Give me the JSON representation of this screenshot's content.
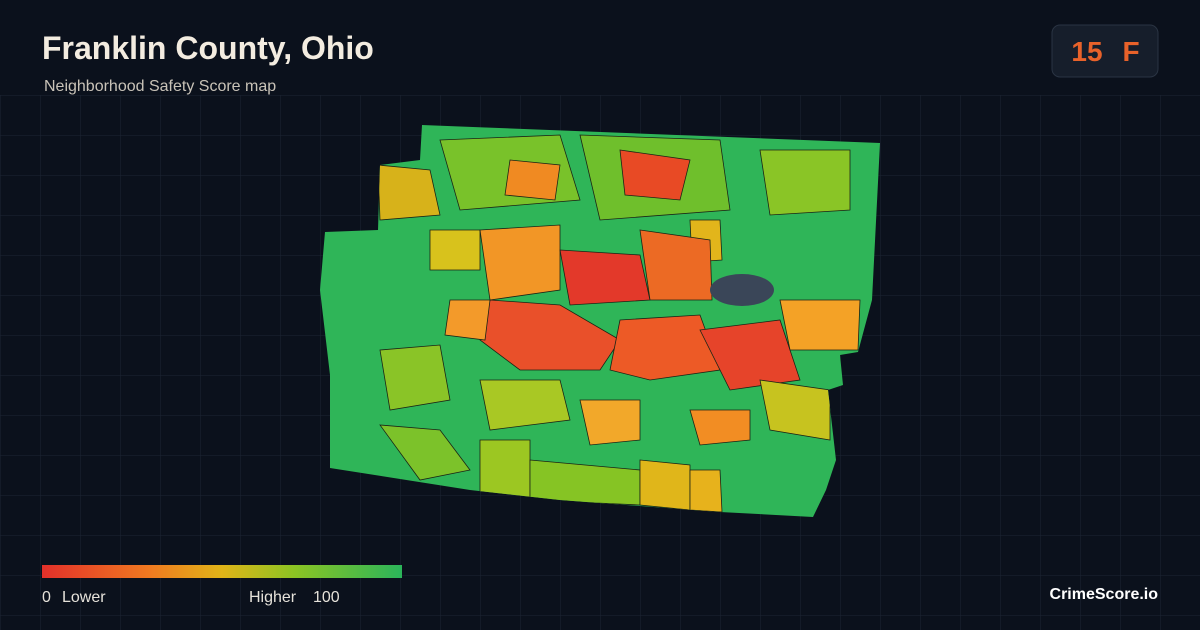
{
  "header": {
    "title": "Franklin County, Ohio",
    "subtitle": "Neighborhood Safety Score map"
  },
  "score": {
    "value": 15,
    "grade": "F"
  },
  "legend": {
    "min": 0,
    "min_label": "Lower",
    "max_label": "Higher",
    "max": 100
  },
  "brand": "CrimeScore.io"
}
